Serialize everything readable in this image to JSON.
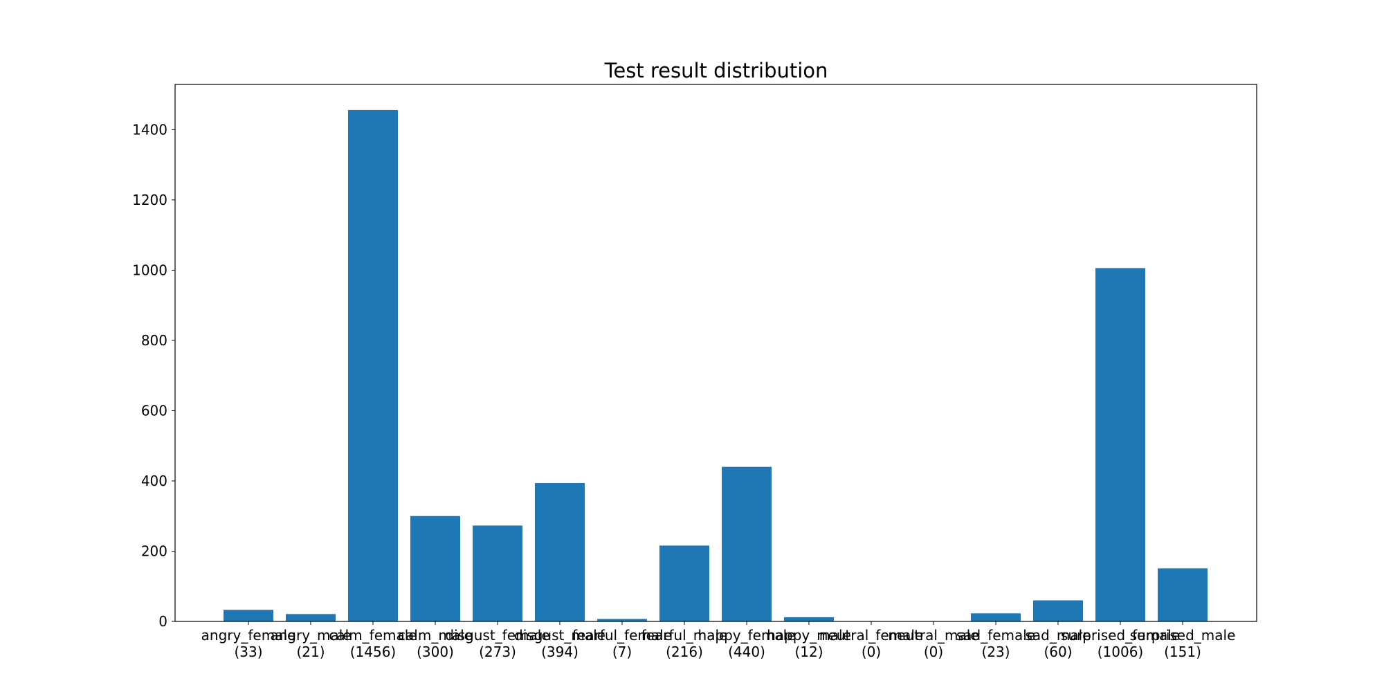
{
  "chart_data": {
    "type": "bar",
    "title": "Test result distribution",
    "xlabel": "",
    "ylabel": "",
    "categories": [
      "angry_female",
      "angry_male",
      "calm_female",
      "calm_male",
      "disgust_female",
      "disgust_male",
      "fearful_female",
      "fearful_male",
      "happy_female",
      "happy_male",
      "neutral_female",
      "neutral_male",
      "sad_female",
      "sad_male",
      "surprised_female",
      "surprised_male"
    ],
    "category_labels": [
      "(33)",
      "(21)",
      "(1456)",
      "(300)",
      "(273)",
      "(394)",
      "(7)",
      "(216)",
      "(440)",
      "(12)",
      "(0)",
      "(0)",
      "(23)",
      "(60)",
      "(1006)",
      "(151)"
    ],
    "values": [
      33,
      21,
      1456,
      300,
      273,
      394,
      7,
      216,
      440,
      12,
      0,
      0,
      23,
      60,
      1006,
      151
    ],
    "ylim": [
      0,
      1528.8
    ],
    "yticks": [
      0,
      200,
      400,
      600,
      800,
      1000,
      1200,
      1400
    ],
    "grid": false,
    "bar_color": "#1f77b4"
  }
}
